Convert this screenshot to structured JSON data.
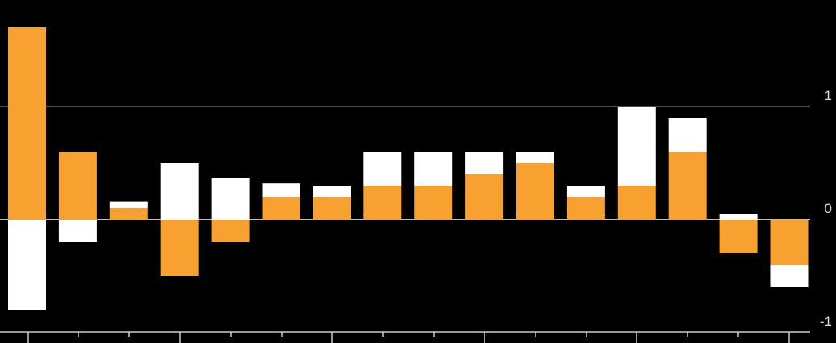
{
  "chart_data": {
    "type": "bar",
    "stacked": true,
    "categories": [
      "",
      "",
      "",
      "",
      "",
      "",
      "",
      "",
      "",
      "",
      "",
      "",
      "",
      "",
      "",
      ""
    ],
    "series": [
      {
        "color": "#f7a130",
        "values": [
          1.7,
          0.6,
          0.1,
          -0.5,
          -0.2,
          0.2,
          0.2,
          0.3,
          0.3,
          0.4,
          0.5,
          0.2,
          0.3,
          0.6,
          -0.3,
          -0.4
        ]
      },
      {
        "color": "#ffffff",
        "values": [
          -0.8,
          -0.2,
          0.06,
          0.5,
          0.37,
          0.12,
          0.1,
          0.3,
          0.3,
          0.2,
          0.1,
          0.1,
          0.7,
          0.3,
          0.05,
          -0.2
        ]
      }
    ],
    "y_ticks": [
      "1",
      "0",
      "-1"
    ],
    "y_tick_values": [
      1,
      0,
      -1
    ],
    "ylim": [
      -1,
      1.95
    ],
    "grid": true,
    "legend": "none"
  },
  "colors": {
    "background": "#000000",
    "gridline": "#9a9a9a",
    "zero_line": "#ffffff",
    "axis": "#cccccc"
  }
}
